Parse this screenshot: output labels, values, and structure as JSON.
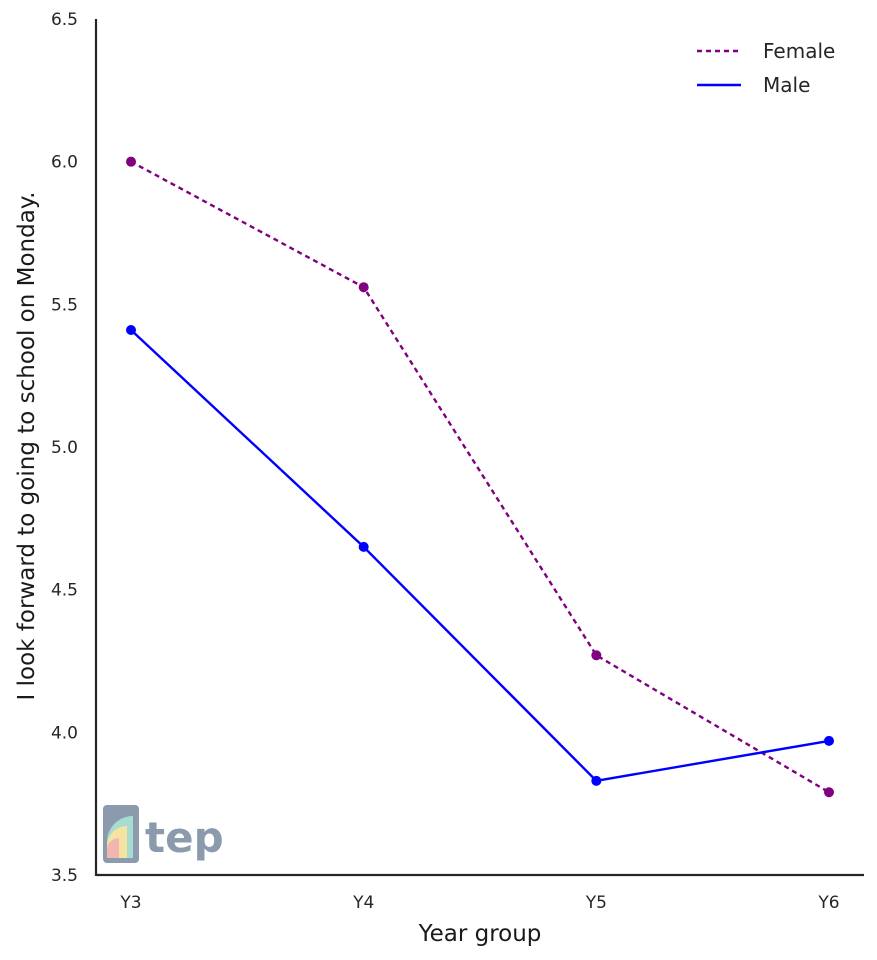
{
  "chart_data": {
    "type": "line",
    "xlabel": "Year group",
    "ylabel": "I look forward to going to school on Monday.",
    "categories": [
      "Y3",
      "Y4",
      "Y5",
      "Y6"
    ],
    "ylim": [
      3.5,
      6.5
    ],
    "yticks": [
      "3.5",
      "4.0",
      "4.5",
      "5.0",
      "5.5",
      "6.0",
      "6.5"
    ],
    "grid": false,
    "legend_position": "top-right",
    "series": [
      {
        "name": "Female",
        "values": [
          6.0,
          5.56,
          4.27,
          3.79
        ],
        "color": "#800080",
        "style": "dashed"
      },
      {
        "name": "Male",
        "values": [
          5.41,
          4.65,
          3.83,
          3.97
        ],
        "color": "#0000ff",
        "style": "solid"
      }
    ]
  },
  "watermark": {
    "text": "tep",
    "icon": "rainbow-logo-icon"
  }
}
